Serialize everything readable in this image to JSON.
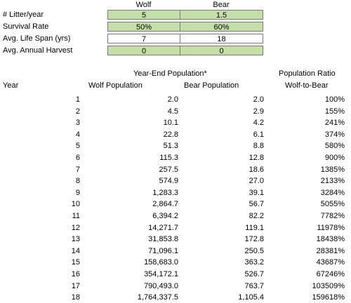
{
  "params": {
    "headers": {
      "wolf": "Wolf",
      "bear": "Bear"
    },
    "rows": [
      {
        "label": "# Litter/year",
        "wolf": "5",
        "bear": "1.5",
        "style": "green"
      },
      {
        "label": "Survival Rate",
        "wolf": "50%",
        "bear": "60%",
        "style": "green"
      },
      {
        "label": "Avg. Life Span (yrs)",
        "wolf": "7",
        "bear": "18",
        "style": "white"
      },
      {
        "label": "Avg. Annual Harvest",
        "wolf": "0",
        "bear": "0",
        "style": "green"
      }
    ]
  },
  "table": {
    "group_header": "Year-End Population*",
    "ratio_header_1": "Population Ratio",
    "ratio_header_2": "Wolf-to-Bear",
    "year_header": "Year",
    "wolf_header": "Wolf Population",
    "bear_header": "Bear Population",
    "rows": [
      {
        "year": "1",
        "wolf": "2.0",
        "bear": "2.0",
        "ratio": "100%"
      },
      {
        "year": "2",
        "wolf": "4.5",
        "bear": "2.9",
        "ratio": "155%"
      },
      {
        "year": "3",
        "wolf": "10.1",
        "bear": "4.2",
        "ratio": "241%"
      },
      {
        "year": "4",
        "wolf": "22.8",
        "bear": "6.1",
        "ratio": "374%"
      },
      {
        "year": "5",
        "wolf": "51.3",
        "bear": "8.8",
        "ratio": "580%"
      },
      {
        "year": "6",
        "wolf": "115.3",
        "bear": "12.8",
        "ratio": "900%"
      },
      {
        "year": "7",
        "wolf": "257.5",
        "bear": "18.6",
        "ratio": "1385%"
      },
      {
        "year": "8",
        "wolf": "574.9",
        "bear": "27.0",
        "ratio": "2133%"
      },
      {
        "year": "9",
        "wolf": "1,283.3",
        "bear": "39.1",
        "ratio": "3284%"
      },
      {
        "year": "10",
        "wolf": "2,864.7",
        "bear": "56.7",
        "ratio": "5055%"
      },
      {
        "year": "11",
        "wolf": "6,394.2",
        "bear": "82.2",
        "ratio": "7782%"
      },
      {
        "year": "12",
        "wolf": "14,271.7",
        "bear": "119.1",
        "ratio": "11978%"
      },
      {
        "year": "13",
        "wolf": "31,853.8",
        "bear": "172.8",
        "ratio": "18438%"
      },
      {
        "year": "14",
        "wolf": "71,096.1",
        "bear": "250.5",
        "ratio": "28381%"
      },
      {
        "year": "15",
        "wolf": "158,683.0",
        "bear": "363.2",
        "ratio": "43687%"
      },
      {
        "year": "16",
        "wolf": "354,172.1",
        "bear": "526.7",
        "ratio": "67246%"
      },
      {
        "year": "17",
        "wolf": "790,493.0",
        "bear": "763.7",
        "ratio": "103509%"
      },
      {
        "year": "18",
        "wolf": "1,764,337.5",
        "bear": "1,105.4",
        "ratio": "159618%"
      }
    ]
  },
  "colors": {
    "input_fill": "#c5dfa9",
    "border": "#7a7a7a"
  }
}
